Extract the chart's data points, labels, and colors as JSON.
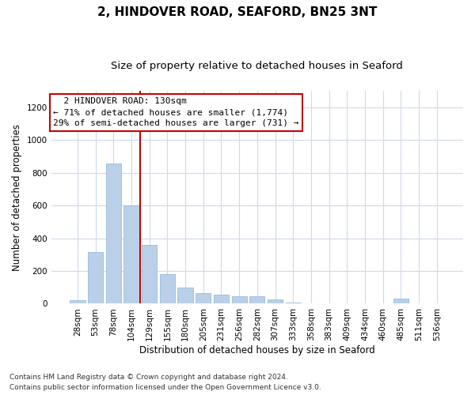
{
  "title": "2, HINDOVER ROAD, SEAFORD, BN25 3NT",
  "subtitle": "Size of property relative to detached houses in Seaford",
  "xlabel": "Distribution of detached houses by size in Seaford",
  "ylabel": "Number of detached properties",
  "footnote1": "Contains HM Land Registry data © Crown copyright and database right 2024.",
  "footnote2": "Contains public sector information licensed under the Open Government Licence v3.0.",
  "annotation_line1": "  2 HINDOVER ROAD: 130sqm  ",
  "annotation_line2": "← 71% of detached houses are smaller (1,774)",
  "annotation_line3": "29% of semi-detached houses are larger (731) →",
  "bar_color": "#bad0e8",
  "bar_edge_color": "#8ab4d8",
  "marker_color": "#cc0000",
  "categories": [
    "28sqm",
    "53sqm",
    "78sqm",
    "104sqm",
    "129sqm",
    "155sqm",
    "180sqm",
    "205sqm",
    "231sqm",
    "256sqm",
    "282sqm",
    "307sqm",
    "333sqm",
    "358sqm",
    "383sqm",
    "409sqm",
    "434sqm",
    "460sqm",
    "485sqm",
    "511sqm",
    "536sqm"
  ],
  "values": [
    20,
    315,
    855,
    600,
    360,
    180,
    100,
    65,
    55,
    45,
    45,
    25,
    5,
    3,
    3,
    3,
    0,
    0,
    30,
    0,
    0
  ],
  "ylim": [
    0,
    1300
  ],
  "yticks": [
    0,
    200,
    400,
    600,
    800,
    1000,
    1200
  ],
  "red_line_x": 3.5,
  "title_fontsize": 11,
  "subtitle_fontsize": 9.5,
  "axis_label_fontsize": 8.5,
  "tick_fontsize": 7.5,
  "annotation_fontsize": 8,
  "footnote_fontsize": 6.5,
  "grid_color": "#d0daea",
  "background_color": "#ffffff"
}
